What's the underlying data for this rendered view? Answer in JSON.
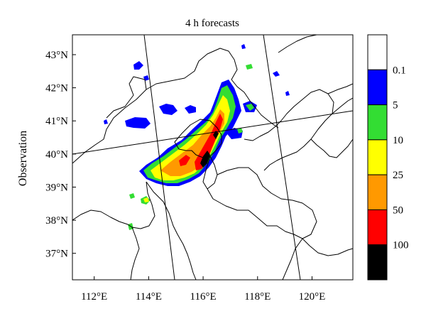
{
  "title": "4 h forecasts",
  "row_label": "Observation",
  "x_ticks": [
    "112°E",
    "114°E",
    "116°E",
    "118°E",
    "120°E"
  ],
  "y_ticks": [
    "43°N",
    "42°N",
    "41°N",
    "40°N",
    "39°N",
    "38°N",
    "37°N"
  ],
  "x_tick_values": [
    112,
    114,
    116,
    118,
    120
  ],
  "y_tick_values": [
    43,
    42,
    41,
    40,
    39,
    38,
    37
  ],
  "extent": {
    "lon": [
      111.2,
      121.5
    ],
    "lat": [
      36.2,
      43.6
    ]
  },
  "colorbar": {
    "labels": [
      "0.1",
      "5",
      "10",
      "25",
      "50",
      "100"
    ],
    "colors": [
      "#ffffff",
      "#0000ff",
      "#33dd33",
      "#ffff00",
      "#ff9900",
      "#ff0000",
      "#000000"
    ]
  },
  "chart_data": {
    "type": "heatmap",
    "title": "4 h forecasts",
    "ylabel": "Observation",
    "xlabel": "",
    "xlim": [
      111.2,
      121.5
    ],
    "ylim": [
      36.2,
      43.6
    ],
    "x_ticks": [
      112,
      114,
      116,
      118,
      120
    ],
    "y_ticks": [
      37,
      38,
      39,
      40,
      41,
      42,
      43
    ],
    "levels": [
      0.1,
      5,
      10,
      25,
      50,
      100
    ],
    "level_colors": [
      "#ffffff",
      "#0000ff",
      "#33dd33",
      "#ffff00",
      "#ff9900",
      "#ff0000",
      "#000000"
    ]
  }
}
